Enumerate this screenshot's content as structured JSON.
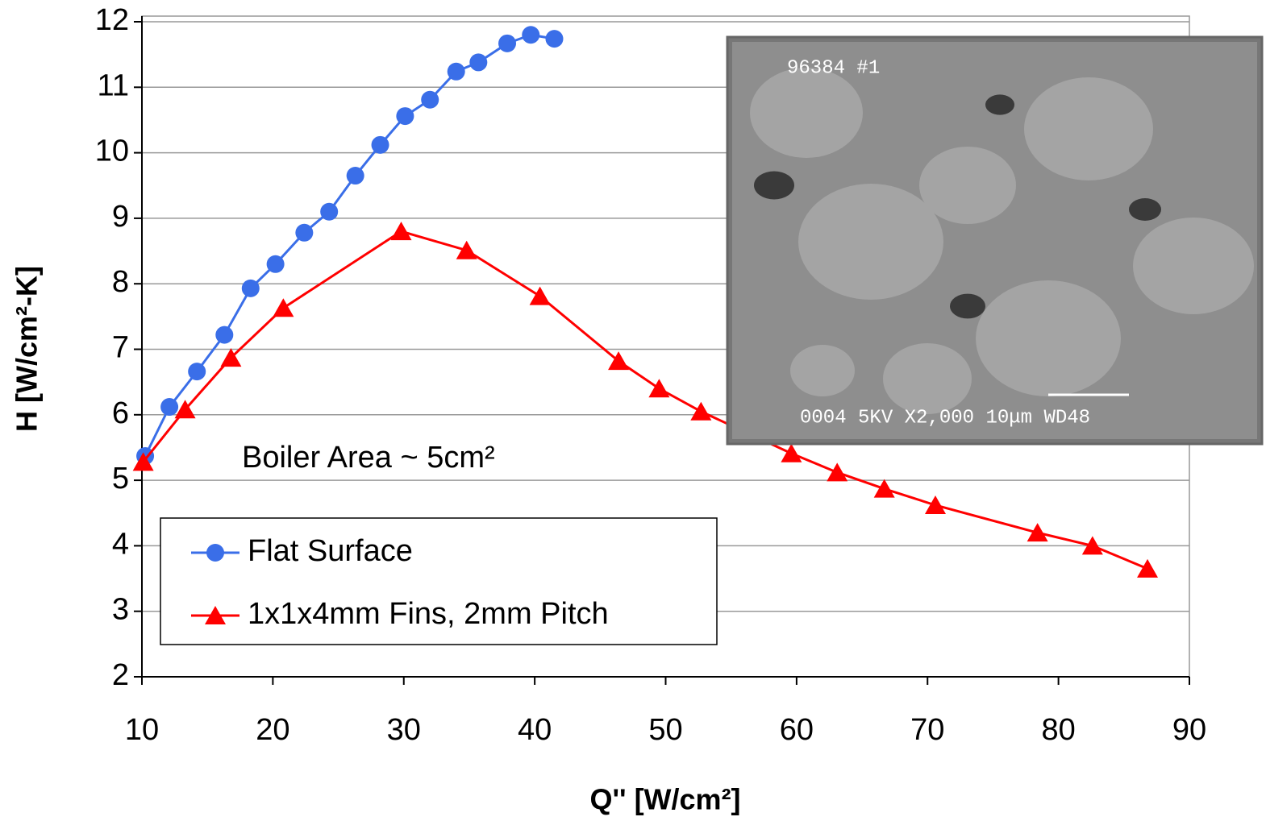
{
  "chart_data": {
    "type": "line",
    "xlabel": "Q'' [W/cm²]",
    "ylabel": "H [W/cm²-K]",
    "annotation": "Boiler Area ~ 5cm²",
    "inset_texts": [
      "96384  #1",
      "0004   5KV   X2,000  10μm WD48"
    ],
    "xlim": [
      10,
      90
    ],
    "xticks": [
      10,
      20,
      30,
      40,
      50,
      60,
      70,
      80,
      90
    ],
    "ylim": [
      2,
      12
    ],
    "yticks": [
      2,
      3,
      4,
      5,
      6,
      7,
      8,
      9,
      10,
      11,
      12
    ],
    "grid": true,
    "legend": "lower left",
    "series": [
      {
        "name": "Flat Surface",
        "color": "#3a6ee8",
        "marker": "circle",
        "x": [
          10.25,
          12.1,
          14.2,
          16.3,
          18.3,
          20.2,
          22.4,
          24.3,
          26.3,
          28.2,
          30.1,
          32.0,
          34.0,
          35.7,
          37.9,
          39.7,
          41.5
        ],
        "values": [
          5.37,
          6.12,
          6.66,
          7.22,
          7.93,
          8.3,
          8.78,
          9.1,
          9.65,
          10.12,
          10.56,
          10.81,
          11.24,
          11.38,
          11.67,
          11.8,
          11.74
        ]
      },
      {
        "name": "1x1x4mm Fins, 2mm Pitch",
        "color": "#ff0000",
        "marker": "triangle",
        "x": [
          10.1,
          13.3,
          16.8,
          20.8,
          29.8,
          34.8,
          40.4,
          46.4,
          49.5,
          52.7,
          59.6,
          63.1,
          66.7,
          70.6,
          78.4,
          82.6,
          86.8
        ],
        "values": [
          5.28,
          6.08,
          6.87,
          7.63,
          8.8,
          8.51,
          7.81,
          6.82,
          6.4,
          6.05,
          5.41,
          5.12,
          4.87,
          4.62,
          4.2,
          4.0,
          3.65
        ]
      }
    ]
  }
}
